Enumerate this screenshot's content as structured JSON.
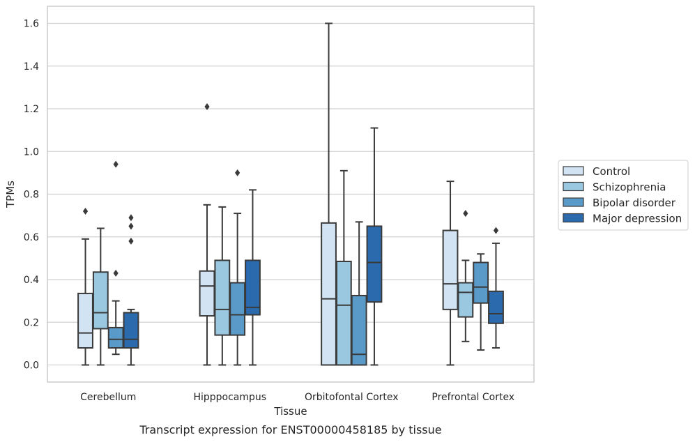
{
  "chart_data": {
    "type": "box",
    "caption": "Transcript expression for ENST00000458185 by tissue",
    "xlabel": "Tissue",
    "ylabel": "TPMs",
    "ylim": [
      -0.08,
      1.68
    ],
    "yticks": [
      0.0,
      0.2,
      0.4,
      0.6,
      0.8,
      1.0,
      1.2,
      1.4,
      1.6
    ],
    "ytick_labels": [
      "0.0",
      "0.2",
      "0.4",
      "0.6",
      "0.8",
      "1.0",
      "1.2",
      "1.4",
      "1.6"
    ],
    "grid": "y",
    "legend_position": "right",
    "categories": [
      "Cerebellum",
      "Hipppocampus",
      "Orbitofontal Cortex",
      "Prefrontal Cortex"
    ],
    "series": [
      {
        "name": "Control",
        "color": "#d2e3f3",
        "boxes": [
          {
            "whislo": 0.0,
            "q1": 0.08,
            "med": 0.15,
            "q3": 0.335,
            "whishi": 0.59,
            "fliers": [
              0.72
            ]
          },
          {
            "whislo": 0.0,
            "q1": 0.23,
            "med": 0.37,
            "q3": 0.44,
            "whishi": 0.75,
            "fliers": [
              1.21
            ]
          },
          {
            "whislo": 0.0,
            "q1": 0.0,
            "med": 0.31,
            "q3": 0.665,
            "whishi": 1.6,
            "fliers": []
          },
          {
            "whislo": 0.0,
            "q1": 0.26,
            "med": 0.38,
            "q3": 0.63,
            "whishi": 0.86,
            "fliers": []
          }
        ]
      },
      {
        "name": "Schizophrenia",
        "color": "#9ac8e0",
        "boxes": [
          {
            "whislo": 0.0,
            "q1": 0.17,
            "med": 0.245,
            "q3": 0.435,
            "whishi": 0.64,
            "fliers": []
          },
          {
            "whislo": 0.0,
            "q1": 0.14,
            "med": 0.26,
            "q3": 0.49,
            "whishi": 0.74,
            "fliers": []
          },
          {
            "whislo": 0.0,
            "q1": 0.0,
            "med": 0.28,
            "q3": 0.485,
            "whishi": 0.91,
            "fliers": []
          },
          {
            "whislo": 0.11,
            "q1": 0.225,
            "med": 0.34,
            "q3": 0.385,
            "whishi": 0.49,
            "fliers": [
              0.71
            ]
          }
        ]
      },
      {
        "name": "Bipolar disorder",
        "color": "#5a9ac9",
        "boxes": [
          {
            "whislo": 0.05,
            "q1": 0.08,
            "med": 0.12,
            "q3": 0.175,
            "whishi": 0.3,
            "fliers": [
              0.43,
              0.94
            ]
          },
          {
            "whislo": 0.0,
            "q1": 0.14,
            "med": 0.235,
            "q3": 0.385,
            "whishi": 0.71,
            "fliers": [
              0.9
            ]
          },
          {
            "whislo": 0.0,
            "q1": 0.0,
            "med": 0.05,
            "q3": 0.325,
            "whishi": 0.67,
            "fliers": []
          },
          {
            "whislo": 0.07,
            "q1": 0.29,
            "med": 0.365,
            "q3": 0.48,
            "whishi": 0.52,
            "fliers": []
          }
        ]
      },
      {
        "name": "Major depression",
        "color": "#2a6aad",
        "boxes": [
          {
            "whislo": 0.0,
            "q1": 0.08,
            "med": 0.12,
            "q3": 0.245,
            "whishi": 0.26,
            "fliers": [
              0.58,
              0.65,
              0.69
            ]
          },
          {
            "whislo": 0.0,
            "q1": 0.235,
            "med": 0.27,
            "q3": 0.49,
            "whishi": 0.82,
            "fliers": []
          },
          {
            "whislo": 0.0,
            "q1": 0.295,
            "med": 0.48,
            "q3": 0.65,
            "whishi": 1.11,
            "fliers": []
          },
          {
            "whislo": 0.08,
            "q1": 0.195,
            "med": 0.24,
            "q3": 0.345,
            "whishi": 0.57,
            "fliers": [
              0.63
            ]
          }
        ]
      }
    ]
  }
}
